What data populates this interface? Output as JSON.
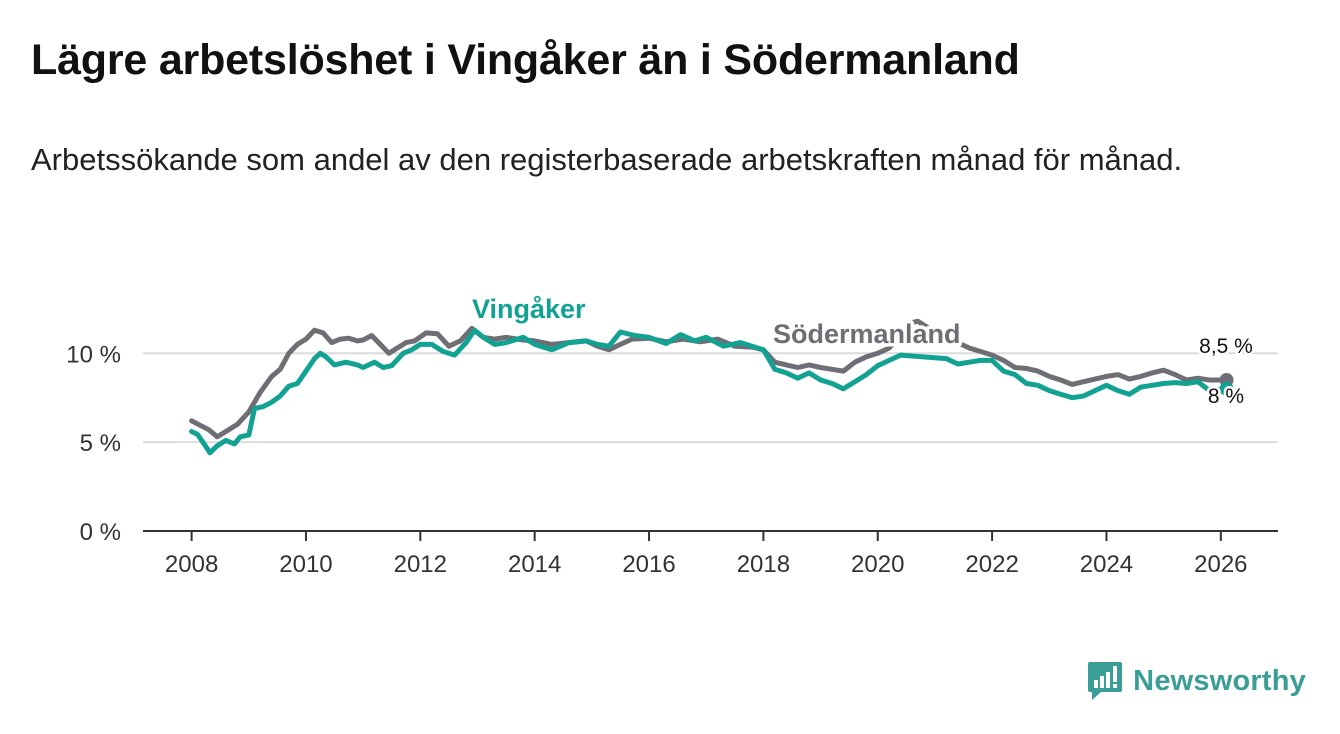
{
  "title": "Lägre arbetslöshet i Vingåker än i Södermanland",
  "subtitle": "Arbetssökande som andel av den registerbaserade arbetskraften månad för månad.",
  "brand": {
    "name": "Newsworthy",
    "icon": "bar-chart-speech-bubble-icon",
    "color": "#3a9e96"
  },
  "chart_data": {
    "type": "line",
    "x_unit": "year",
    "xlim": [
      2007.15,
      2027.0
    ],
    "ylim": [
      0,
      13
    ],
    "x_ticks": [
      2008,
      2010,
      2012,
      2014,
      2016,
      2018,
      2020,
      2022,
      2024,
      2026
    ],
    "x_tick_labels": [
      "2008",
      "2010",
      "2012",
      "2014",
      "2016",
      "2018",
      "2020",
      "2022",
      "2024",
      "2026"
    ],
    "y_ticks": [
      0,
      5,
      10
    ],
    "y_tick_labels": [
      "0 %",
      "5 %",
      "10 %"
    ],
    "gridlines": true,
    "series": [
      {
        "name": "Södermanland",
        "label": "Södermanland",
        "color": "#6e6e74",
        "end_label": "8,5 %",
        "points": [
          [
            2008.0,
            6.2
          ],
          [
            2008.15,
            5.95
          ],
          [
            2008.3,
            5.7
          ],
          [
            2008.45,
            5.3
          ],
          [
            2008.6,
            5.6
          ],
          [
            2008.8,
            6.0
          ],
          [
            2009.0,
            6.7
          ],
          [
            2009.2,
            7.8
          ],
          [
            2009.4,
            8.7
          ],
          [
            2009.55,
            9.1
          ],
          [
            2009.7,
            10.0
          ],
          [
            2009.85,
            10.5
          ],
          [
            2010.0,
            10.8
          ],
          [
            2010.15,
            11.3
          ],
          [
            2010.3,
            11.15
          ],
          [
            2010.45,
            10.6
          ],
          [
            2010.6,
            10.8
          ],
          [
            2010.75,
            10.85
          ],
          [
            2010.9,
            10.7
          ],
          [
            2011.0,
            10.75
          ],
          [
            2011.15,
            11.0
          ],
          [
            2011.3,
            10.5
          ],
          [
            2011.45,
            10.0
          ],
          [
            2011.6,
            10.3
          ],
          [
            2011.75,
            10.6
          ],
          [
            2011.9,
            10.7
          ],
          [
            2012.1,
            11.15
          ],
          [
            2012.3,
            11.1
          ],
          [
            2012.5,
            10.4
          ],
          [
            2012.7,
            10.7
          ],
          [
            2012.9,
            11.4
          ],
          [
            2013.1,
            10.9
          ],
          [
            2013.3,
            10.8
          ],
          [
            2013.5,
            10.9
          ],
          [
            2013.8,
            10.75
          ],
          [
            2014.0,
            10.7
          ],
          [
            2014.3,
            10.5
          ],
          [
            2014.6,
            10.6
          ],
          [
            2014.9,
            10.7
          ],
          [
            2015.1,
            10.4
          ],
          [
            2015.3,
            10.2
          ],
          [
            2015.5,
            10.5
          ],
          [
            2015.7,
            10.8
          ],
          [
            2016.0,
            10.85
          ],
          [
            2016.3,
            10.65
          ],
          [
            2016.6,
            10.8
          ],
          [
            2016.9,
            10.65
          ],
          [
            2017.2,
            10.8
          ],
          [
            2017.5,
            10.4
          ],
          [
            2017.8,
            10.35
          ],
          [
            2018.0,
            10.2
          ],
          [
            2018.2,
            9.5
          ],
          [
            2018.4,
            9.35
          ],
          [
            2018.6,
            9.2
          ],
          [
            2018.8,
            9.35
          ],
          [
            2019.0,
            9.2
          ],
          [
            2019.2,
            9.1
          ],
          [
            2019.4,
            9.0
          ],
          [
            2019.6,
            9.5
          ],
          [
            2019.8,
            9.8
          ],
          [
            2020.0,
            10.0
          ],
          [
            2020.2,
            10.3
          ],
          [
            2020.4,
            11.0
          ],
          [
            2020.55,
            11.7
          ],
          [
            2020.7,
            11.8
          ],
          [
            2020.85,
            11.5
          ],
          [
            2021.0,
            11.3
          ],
          [
            2021.2,
            11.1
          ],
          [
            2021.4,
            10.6
          ],
          [
            2021.6,
            10.3
          ],
          [
            2021.8,
            10.1
          ],
          [
            2022.0,
            9.9
          ],
          [
            2022.2,
            9.6
          ],
          [
            2022.4,
            9.2
          ],
          [
            2022.6,
            9.15
          ],
          [
            2022.8,
            9.0
          ],
          [
            2023.0,
            8.7
          ],
          [
            2023.2,
            8.5
          ],
          [
            2023.4,
            8.25
          ],
          [
            2023.6,
            8.4
          ],
          [
            2023.8,
            8.55
          ],
          [
            2024.0,
            8.7
          ],
          [
            2024.2,
            8.8
          ],
          [
            2024.4,
            8.55
          ],
          [
            2024.6,
            8.7
          ],
          [
            2024.8,
            8.9
          ],
          [
            2025.0,
            9.05
          ],
          [
            2025.2,
            8.8
          ],
          [
            2025.4,
            8.5
          ],
          [
            2025.6,
            8.6
          ],
          [
            2025.8,
            8.5
          ],
          [
            2026.1,
            8.5
          ]
        ]
      },
      {
        "name": "Vingåker",
        "label": "Vingåker",
        "color": "#12a293",
        "end_label": "8 %",
        "points": [
          [
            2008.0,
            5.6
          ],
          [
            2008.1,
            5.45
          ],
          [
            2008.2,
            5.0
          ],
          [
            2008.32,
            4.4
          ],
          [
            2008.45,
            4.8
          ],
          [
            2008.6,
            5.1
          ],
          [
            2008.75,
            4.9
          ],
          [
            2008.85,
            5.3
          ],
          [
            2009.0,
            5.4
          ],
          [
            2009.1,
            6.9
          ],
          [
            2009.25,
            7.0
          ],
          [
            2009.4,
            7.25
          ],
          [
            2009.55,
            7.6
          ],
          [
            2009.7,
            8.15
          ],
          [
            2009.85,
            8.3
          ],
          [
            2010.0,
            9.0
          ],
          [
            2010.15,
            9.7
          ],
          [
            2010.25,
            10.0
          ],
          [
            2010.35,
            9.8
          ],
          [
            2010.5,
            9.35
          ],
          [
            2010.7,
            9.5
          ],
          [
            2010.9,
            9.35
          ],
          [
            2011.0,
            9.2
          ],
          [
            2011.2,
            9.5
          ],
          [
            2011.35,
            9.2
          ],
          [
            2011.5,
            9.3
          ],
          [
            2011.7,
            10.0
          ],
          [
            2011.85,
            10.2
          ],
          [
            2012.0,
            10.5
          ],
          [
            2012.2,
            10.5
          ],
          [
            2012.4,
            10.1
          ],
          [
            2012.6,
            9.9
          ],
          [
            2012.8,
            10.6
          ],
          [
            2012.95,
            11.3
          ],
          [
            2013.1,
            10.9
          ],
          [
            2013.3,
            10.5
          ],
          [
            2013.5,
            10.6
          ],
          [
            2013.8,
            10.9
          ],
          [
            2014.0,
            10.5
          ],
          [
            2014.3,
            10.2
          ],
          [
            2014.6,
            10.6
          ],
          [
            2014.9,
            10.7
          ],
          [
            2015.1,
            10.5
          ],
          [
            2015.3,
            10.4
          ],
          [
            2015.5,
            11.2
          ],
          [
            2015.75,
            11.0
          ],
          [
            2016.0,
            10.9
          ],
          [
            2016.3,
            10.55
          ],
          [
            2016.55,
            11.05
          ],
          [
            2016.8,
            10.7
          ],
          [
            2017.0,
            10.9
          ],
          [
            2017.3,
            10.4
          ],
          [
            2017.6,
            10.6
          ],
          [
            2017.9,
            10.3
          ],
          [
            2018.0,
            10.2
          ],
          [
            2018.2,
            9.1
          ],
          [
            2018.4,
            8.9
          ],
          [
            2018.6,
            8.6
          ],
          [
            2018.8,
            8.9
          ],
          [
            2019.0,
            8.5
          ],
          [
            2019.2,
            8.3
          ],
          [
            2019.4,
            8.0
          ],
          [
            2019.6,
            8.4
          ],
          [
            2019.8,
            8.8
          ],
          [
            2020.0,
            9.3
          ],
          [
            2020.2,
            9.6
          ],
          [
            2020.4,
            9.9
          ],
          [
            2021.2,
            9.7
          ],
          [
            2021.4,
            9.4
          ],
          [
            2021.6,
            9.5
          ],
          [
            2021.8,
            9.6
          ],
          [
            2022.0,
            9.6
          ],
          [
            2022.2,
            9.0
          ],
          [
            2022.4,
            8.8
          ],
          [
            2022.6,
            8.3
          ],
          [
            2022.8,
            8.2
          ],
          [
            2023.0,
            7.9
          ],
          [
            2023.2,
            7.7
          ],
          [
            2023.4,
            7.5
          ],
          [
            2023.6,
            7.6
          ],
          [
            2023.8,
            7.9
          ],
          [
            2024.0,
            8.2
          ],
          [
            2024.2,
            7.9
          ],
          [
            2024.4,
            7.7
          ],
          [
            2024.6,
            8.1
          ],
          [
            2024.8,
            8.2
          ],
          [
            2025.0,
            8.3
          ],
          [
            2025.2,
            8.35
          ],
          [
            2025.4,
            8.3
          ],
          [
            2025.6,
            8.4
          ],
          [
            2025.8,
            7.9
          ],
          [
            2026.1,
            8.0
          ]
        ]
      }
    ]
  }
}
